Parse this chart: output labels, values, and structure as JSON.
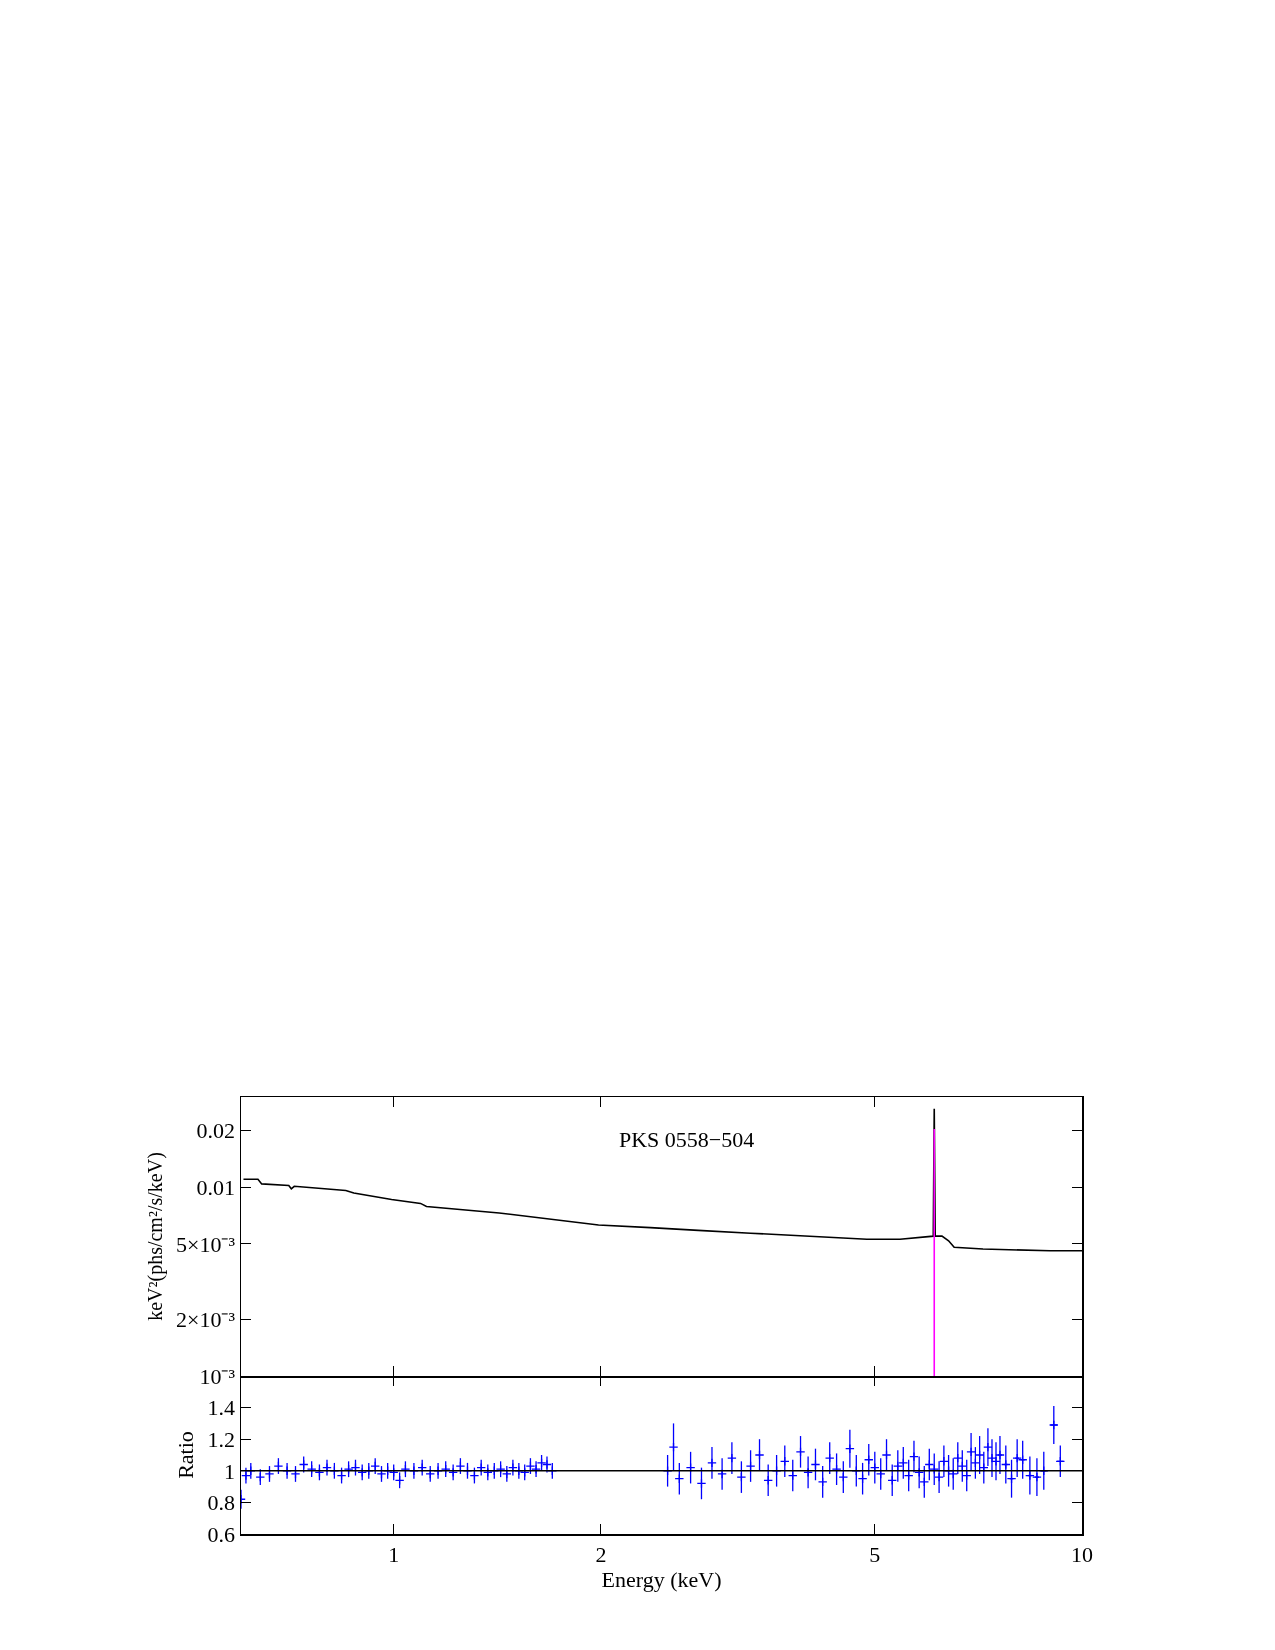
{
  "chart_data": [
    {
      "type": "line",
      "log": "xy",
      "ylabel": "keV²(phs/cm²/s/keV)",
      "annotations": [
        "PKS 0558−504"
      ],
      "tick_labels": "y",
      "xlim": [
        0.6,
        10
      ],
      "xticks": [
        1,
        2,
        5,
        10
      ],
      "ylim": [
        0.001,
        0.03
      ],
      "yticks": [
        {
          "value": 0.001,
          "label": "10⁻³"
        },
        {
          "value": 0.002,
          "label": "2×10⁻³"
        },
        {
          "value": 0.005,
          "label": "5×10⁻³"
        },
        0.01,
        0.02
      ],
      "series": [
        {
          "color": "#000000",
          "x": [
            0.605,
            0.635,
            0.643,
            0.704,
            0.71,
            0.717,
            0.852,
            0.875,
            0.993,
            1.094,
            1.116,
            1.423,
            1.984,
            2.36,
            2.77,
            3.3,
            4.87,
            5.44,
            6.08,
            6.1,
            6.12,
            6.26,
            6.4,
            6.52,
            7.18,
            8.99,
            10.0
          ],
          "values": [
            0.011,
            0.011,
            0.0104,
            0.0102,
            0.0098,
            0.0101,
            0.0096,
            0.0093,
            0.0086,
            0.0082,
            0.0079,
            0.0073,
            0.0063,
            0.0061,
            0.0059,
            0.0057,
            0.0053,
            0.0053,
            0.0055,
            0.026,
            0.0055,
            0.0055,
            0.0052,
            0.0048,
            0.0047,
            0.0046,
            0.0046
          ]
        },
        {
          "color": "#ff00ff",
          "x": [
            6.1,
            6.1
          ],
          "values": [
            0.001,
            0.0203
          ]
        }
      ]
    },
    {
      "type": "scatter",
      "log": "x",
      "xlabel": "Energy (keV)",
      "ylabel": "Ratio",
      "marker": "cross",
      "xlim": [
        0.6,
        10
      ],
      "xticks": [
        1,
        2,
        5,
        10
      ],
      "ylim": [
        0.6,
        1.6
      ],
      "yticks": [
        0.6,
        0.8,
        1,
        1.2,
        1.4
      ],
      "ref_lines": [
        {
          "axis": "y",
          "value": 1,
          "color": "#000000"
        }
      ],
      "series": [
        {
          "color": "#0000ff",
          "x": [
            0.6,
            0.61,
            0.62,
            0.64,
            0.66,
            0.68,
            0.7,
            0.72,
            0.74,
            0.76,
            0.78,
            0.8,
            0.82,
            0.84,
            0.86,
            0.88,
            0.9,
            0.92,
            0.94,
            0.96,
            0.98,
            1.0,
            1.02,
            1.04,
            1.07,
            1.1,
            1.13,
            1.16,
            1.19,
            1.22,
            1.25,
            1.28,
            1.31,
            1.34,
            1.37,
            1.4,
            1.43,
            1.46,
            1.49,
            1.52,
            1.55,
            1.58,
            1.61,
            1.64,
            1.67,
            1.7,
            2.5,
            2.55,
            2.6,
            2.7,
            2.8,
            2.9,
            3.0,
            3.1,
            3.2,
            3.3,
            3.4,
            3.5,
            3.6,
            3.7,
            3.8,
            3.9,
            4.0,
            4.1,
            4.2,
            4.3,
            4.4,
            4.5,
            4.6,
            4.7,
            4.8,
            4.9,
            5.0,
            5.1,
            5.2,
            5.3,
            5.4,
            5.5,
            5.6,
            5.7,
            5.8,
            5.9,
            6.0,
            6.1,
            6.2,
            6.3,
            6.4,
            6.5,
            6.6,
            6.7,
            6.8,
            6.9,
            7.0,
            7.1,
            7.2,
            7.3,
            7.4,
            7.5,
            7.6,
            7.75,
            7.9,
            8.05,
            8.2,
            8.4,
            8.6,
            8.8,
            9.1,
            9.3
          ],
          "values": [
            0.82,
            0.97,
            1.0,
            0.96,
            0.98,
            1.03,
            1.0,
            0.98,
            1.04,
            1.01,
            0.99,
            1.02,
            1.0,
            0.97,
            1.01,
            1.02,
            0.99,
            1.0,
            1.03,
            0.98,
            1.0,
            0.99,
            0.94,
            1.01,
            1.0,
            1.02,
            0.98,
            1.0,
            1.01,
            0.99,
            1.03,
            1.0,
            0.97,
            1.02,
            0.99,
            1.0,
            1.01,
            0.98,
            1.02,
            1.0,
            0.99,
            1.03,
            1.01,
            1.05,
            1.04,
            1.0,
            1.0,
            1.15,
            0.95,
            1.02,
            0.92,
            1.05,
            0.98,
            1.08,
            0.96,
            1.03,
            1.1,
            0.94,
            1.0,
            1.06,
            0.97,
            1.12,
            0.99,
            1.04,
            0.93,
            1.08,
            1.01,
            0.96,
            1.14,
            1.0,
            0.95,
            1.07,
            1.02,
            0.98,
            1.1,
            0.94,
            1.03,
            1.05,
            0.97,
            1.09,
            0.99,
            0.93,
            1.04,
            1.01,
            0.96,
            1.06,
            1.0,
            0.98,
            1.08,
            1.03,
            0.97,
            1.12,
            1.05,
            1.1,
            1.02,
            1.15,
            1.08,
            1.06,
            1.1,
            1.04,
            0.95,
            1.08,
            1.07,
            0.97,
            0.96,
            1.0,
            1.29,
            1.06
          ],
          "errors": [
            0.06,
            0.05,
            0.05,
            0.05,
            0.05,
            0.05,
            0.05,
            0.05,
            0.05,
            0.05,
            0.05,
            0.05,
            0.05,
            0.05,
            0.05,
            0.05,
            0.05,
            0.05,
            0.05,
            0.05,
            0.05,
            0.05,
            0.05,
            0.05,
            0.05,
            0.05,
            0.05,
            0.05,
            0.05,
            0.05,
            0.05,
            0.05,
            0.05,
            0.05,
            0.05,
            0.05,
            0.05,
            0.05,
            0.05,
            0.05,
            0.05,
            0.05,
            0.05,
            0.05,
            0.05,
            0.05,
            0.1,
            0.15,
            0.1,
            0.1,
            0.1,
            0.1,
            0.1,
            0.1,
            0.1,
            0.1,
            0.1,
            0.1,
            0.1,
            0.1,
            0.1,
            0.1,
            0.1,
            0.1,
            0.1,
            0.1,
            0.1,
            0.1,
            0.12,
            0.1,
            0.1,
            0.1,
            0.1,
            0.1,
            0.1,
            0.1,
            0.1,
            0.1,
            0.1,
            0.1,
            0.1,
            0.1,
            0.1,
            0.1,
            0.1,
            0.1,
            0.1,
            0.1,
            0.1,
            0.1,
            0.1,
            0.12,
            0.1,
            0.12,
            0.1,
            0.12,
            0.12,
            0.12,
            0.12,
            0.12,
            0.12,
            0.12,
            0.12,
            0.12,
            0.12,
            0.12,
            0.12,
            0.1
          ],
          "xerrors": [
            null,
            null,
            null,
            null,
            null,
            null,
            null,
            null,
            null,
            null,
            null,
            null,
            null,
            null,
            null,
            null,
            null,
            null,
            null,
            null,
            null,
            null,
            null,
            null,
            null,
            null,
            null,
            null,
            null,
            null,
            null,
            null,
            null,
            null,
            null,
            null,
            null,
            null,
            null,
            null,
            null,
            null,
            null,
            null,
            null,
            null,
            null,
            null,
            null,
            null,
            null,
            null,
            null,
            null,
            null,
            null,
            null,
            null,
            null,
            null,
            null,
            null,
            null,
            null,
            null,
            null,
            null,
            null,
            null,
            null,
            null,
            null,
            null,
            null,
            null,
            null,
            null,
            null,
            null,
            null,
            null,
            null,
            null,
            null,
            null,
            null,
            null,
            null,
            null,
            null,
            null,
            null,
            null,
            null,
            null,
            null,
            null,
            null,
            0.05,
            0.05,
            0.05,
            0.05,
            0.06,
            0.06,
            0.06,
            0.08,
            0.1,
            0.1
          ]
        }
      ]
    }
  ]
}
